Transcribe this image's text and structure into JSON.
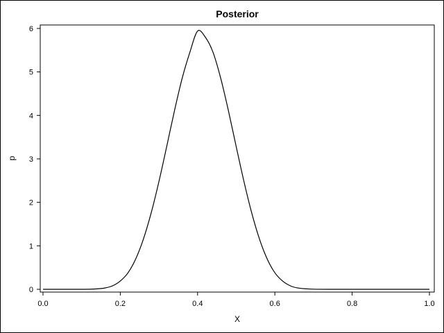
{
  "chart_data": {
    "type": "line",
    "title": "Posterior",
    "xlabel": "X",
    "ylabel": "p",
    "xlim": [
      0,
      1
    ],
    "ylim": [
      0,
      6
    ],
    "xticks": [
      "0.0",
      "0.2",
      "0.4",
      "0.6",
      "0.8",
      "1.0"
    ],
    "yticks": [
      "0",
      "1",
      "2",
      "3",
      "4",
      "5",
      "6"
    ],
    "grid": false,
    "legend": "none",
    "line_color": "#000000",
    "series": [
      {
        "x": [
          0.0,
          0.05,
          0.1,
          0.12,
          0.14,
          0.16,
          0.18,
          0.2,
          0.22,
          0.24,
          0.26,
          0.28,
          0.3,
          0.32,
          0.34,
          0.36,
          0.38,
          0.4,
          0.42,
          0.44,
          0.46,
          0.48,
          0.5,
          0.52,
          0.54,
          0.56,
          0.58,
          0.6,
          0.62,
          0.64,
          0.66,
          0.7,
          0.8,
          0.9,
          1.0
        ],
        "y": [
          0.0,
          0.0,
          0.0,
          0.002,
          0.01,
          0.03,
          0.08,
          0.19,
          0.38,
          0.7,
          1.16,
          1.76,
          2.48,
          3.28,
          4.1,
          4.85,
          5.45,
          5.94,
          5.8,
          5.45,
          4.85,
          4.1,
          3.28,
          2.48,
          1.76,
          1.16,
          0.7,
          0.38,
          0.19,
          0.08,
          0.03,
          0.003,
          0.0,
          0.0,
          0.0
        ]
      }
    ]
  }
}
